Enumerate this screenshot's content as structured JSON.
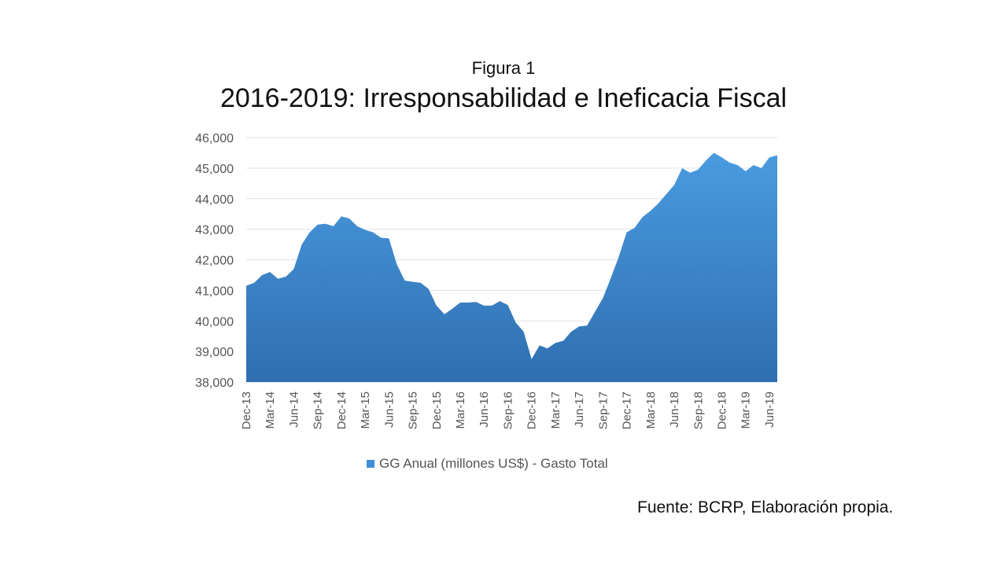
{
  "figure_label": "Figura 1",
  "title": "2016-2019: Irresponsabilidad e Ineficacia Fiscal",
  "source": "Fuente: BCRP, Elaboración propia.",
  "colors": {
    "area_top": "#4a9be0",
    "area_bottom": "#2f6fb0",
    "grid": "#dde3ea"
  },
  "chart_data": {
    "type": "area",
    "title": "2016-2019: Irresponsabilidad e Ineficacia Fiscal",
    "ylim": [
      38000,
      46000
    ],
    "yticks": [
      38000,
      39000,
      40000,
      41000,
      42000,
      43000,
      44000,
      45000,
      46000
    ],
    "ytick_labels": [
      "38,000",
      "39,000",
      "40,000",
      "41,000",
      "42,000",
      "43,000",
      "44,000",
      "45,000",
      "46,000"
    ],
    "xtick_labels": [
      "Dec-13",
      "Mar-14",
      "Jun-14",
      "Sep-14",
      "Dec-14",
      "Mar-15",
      "Jun-15",
      "Sep-15",
      "Dec-15",
      "Mar-16",
      "Jun-16",
      "Sep-16",
      "Dec-16",
      "Mar-17",
      "Jun-17",
      "Sep-17",
      "Dec-17",
      "Mar-18",
      "Jun-18",
      "Sep-18",
      "Dec-18",
      "Mar-19",
      "Jun-19"
    ],
    "grid": true,
    "legend_position": "bottom",
    "series": [
      {
        "name": "GG Anual (millones US$) - Gasto Total",
        "x": [
          "Dec-13",
          "Jan-14",
          "Feb-14",
          "Mar-14",
          "Apr-14",
          "May-14",
          "Jun-14",
          "Jul-14",
          "Aug-14",
          "Sep-14",
          "Oct-14",
          "Nov-14",
          "Dec-14",
          "Jan-15",
          "Feb-15",
          "Mar-15",
          "Apr-15",
          "May-15",
          "Jun-15",
          "Jul-15",
          "Aug-15",
          "Sep-15",
          "Oct-15",
          "Nov-15",
          "Dec-15",
          "Jan-16",
          "Feb-16",
          "Mar-16",
          "Apr-16",
          "May-16",
          "Jun-16",
          "Jul-16",
          "Aug-16",
          "Sep-16",
          "Oct-16",
          "Nov-16",
          "Dec-16",
          "Jan-17",
          "Feb-17",
          "Mar-17",
          "Apr-17",
          "May-17",
          "Jun-17",
          "Jul-17",
          "Aug-17",
          "Sep-17",
          "Oct-17",
          "Nov-17",
          "Dec-17",
          "Jan-18",
          "Feb-18",
          "Mar-18",
          "Apr-18",
          "May-18",
          "Jun-18",
          "Jul-18",
          "Aug-18",
          "Sep-18",
          "Oct-18",
          "Nov-18",
          "Dec-18",
          "Jan-19",
          "Feb-19",
          "Mar-19",
          "Apr-19",
          "May-19",
          "Jun-19",
          "Jul-19"
        ],
        "values": [
          41150,
          41250,
          41500,
          41600,
          41380,
          41450,
          41700,
          42500,
          42900,
          43150,
          43180,
          43100,
          43420,
          43350,
          43100,
          42980,
          42900,
          42720,
          42700,
          41850,
          41320,
          41280,
          41250,
          41050,
          40500,
          40220,
          40400,
          40600,
          40600,
          40620,
          40500,
          40500,
          40650,
          40520,
          39950,
          39650,
          38750,
          39200,
          39100,
          39280,
          39350,
          39650,
          39820,
          39850,
          40300,
          40750,
          41400,
          42100,
          42900,
          43050,
          43400,
          43600,
          43850,
          44150,
          44450,
          45000,
          44850,
          44950,
          45250,
          45500,
          45350,
          45180,
          45100,
          44900,
          45100,
          45000,
          45350,
          45420
        ]
      }
    ]
  }
}
